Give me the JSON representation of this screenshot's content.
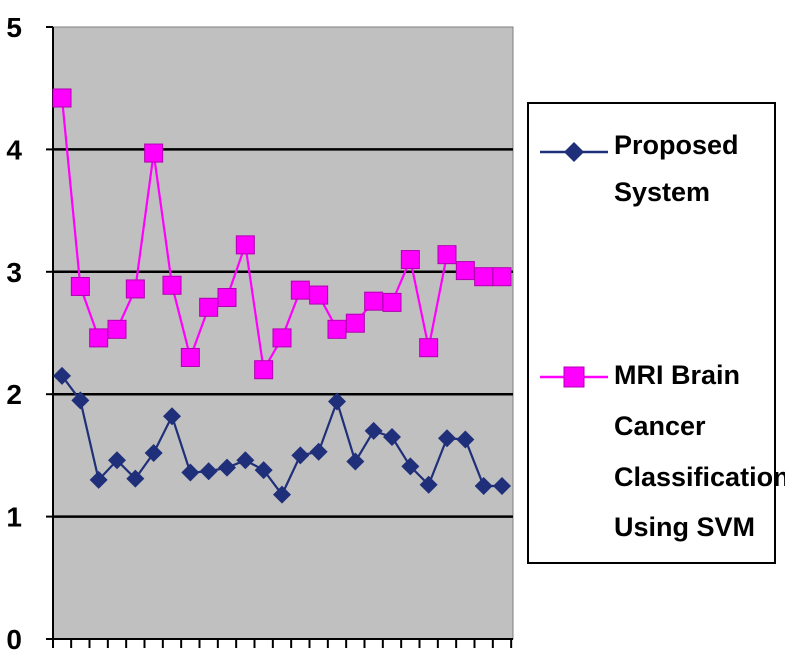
{
  "chart_data": {
    "type": "line",
    "x": [
      1,
      2,
      3,
      4,
      5,
      6,
      7,
      8,
      9,
      10,
      11,
      12,
      13,
      14,
      15,
      16,
      17,
      18,
      19,
      20,
      21,
      22,
      23,
      24,
      25
    ],
    "series": [
      {
        "name": "Proposed System",
        "marker": "diamond",
        "color": "#1f2f7a",
        "values": [
          2.15,
          1.95,
          1.3,
          1.46,
          1.31,
          1.52,
          1.82,
          1.36,
          1.37,
          1.4,
          1.46,
          1.38,
          1.18,
          1.5,
          1.53,
          1.94,
          1.45,
          1.7,
          1.65,
          1.41,
          1.26,
          1.64,
          1.63,
          1.25,
          1.25
        ]
      },
      {
        "name": "MRI Brain Cancer Classification Using SVM",
        "marker": "square",
        "color": "#ff00ff",
        "values": [
          4.42,
          2.88,
          2.46,
          2.53,
          2.86,
          3.97,
          2.89,
          2.3,
          2.71,
          2.79,
          3.22,
          2.2,
          2.46,
          2.85,
          2.81,
          2.53,
          2.58,
          2.76,
          2.75,
          3.1,
          2.38,
          3.14,
          3.01,
          2.96,
          2.96
        ]
      }
    ],
    "y_ticks": [
      "0",
      "1",
      "2",
      "3",
      "4",
      "5"
    ],
    "ylim": [
      0,
      5
    ],
    "grid": true,
    "plot_background": "#c0c0c0",
    "legend_position": "right",
    "legend": {
      "proposed_lines": [
        "Proposed",
        "System"
      ],
      "svm_lines": [
        "MRI Brain",
        "Cancer",
        "Classification",
        "Using SVM"
      ]
    }
  }
}
